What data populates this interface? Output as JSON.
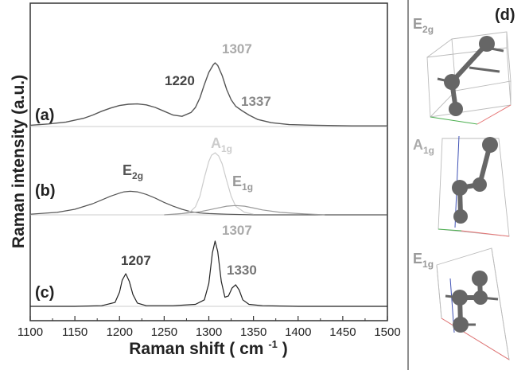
{
  "chart_data": {
    "type": "line",
    "xlabel": "Raman shift",
    "xlabel_unit_base": "cm",
    "xlabel_unit_exp": "-1",
    "ylabel": "Raman intensity (a.u.)",
    "xlim": [
      1100,
      1500
    ],
    "xticks": [
      "1100",
      "1150",
      "1200",
      "1250",
      "1300",
      "1350",
      "1400",
      "1450",
      "1500"
    ],
    "grid": false,
    "panels": [
      {
        "label": "(a)",
        "series": [
          {
            "style": "measured",
            "color": "#555555",
            "x": [
              1100,
              1120,
              1140,
              1160,
              1170,
              1180,
              1190,
              1200,
              1210,
              1220,
              1230,
              1240,
              1250,
              1260,
              1270,
              1280,
              1285,
              1290,
              1295,
              1300,
              1305,
              1307,
              1310,
              1315,
              1320,
              1325,
              1330,
              1337,
              1345,
              1355,
              1370,
              1390,
              1420,
              1460,
              1500
            ],
            "y": [
              0.02,
              0.04,
              0.07,
              0.13,
              0.18,
              0.24,
              0.29,
              0.33,
              0.35,
              0.355,
              0.34,
              0.3,
              0.24,
              0.18,
              0.16,
              0.22,
              0.3,
              0.45,
              0.66,
              0.85,
              0.97,
              1.0,
              0.96,
              0.8,
              0.58,
              0.42,
              0.32,
              0.25,
              0.18,
              0.11,
              0.06,
              0.03,
              0.02,
              0.01,
              0.01
            ]
          }
        ],
        "annotations": [
          {
            "text": "1220",
            "x": 1220,
            "color": "#444444"
          },
          {
            "text": "1307",
            "x": 1307,
            "color": "#aaaaaa"
          },
          {
            "text": "1337",
            "x": 1337,
            "color": "#888888"
          }
        ]
      },
      {
        "label": "(b)",
        "series": [
          {
            "name_base": "E",
            "name_sub": "2g",
            "color": "#555555",
            "x": [
              1100,
              1130,
              1150,
              1170,
              1180,
              1190,
              1200,
              1205,
              1212,
              1220,
              1230,
              1240,
              1250,
              1260,
              1270,
              1280,
              1290,
              1300,
              1320,
              1350,
              1400,
              1500
            ],
            "y": [
              0.01,
              0.04,
              0.09,
              0.18,
              0.24,
              0.3,
              0.35,
              0.37,
              0.38,
              0.37,
              0.33,
              0.27,
              0.2,
              0.14,
              0.09,
              0.05,
              0.03,
              0.02,
              0.01,
              0.0,
              0.0,
              0.0
            ]
          },
          {
            "name_base": "A",
            "name_sub": "1g",
            "color": "#cccccc",
            "x": [
              1270,
              1280,
              1285,
              1290,
              1295,
              1300,
              1303,
              1307,
              1311,
              1315,
              1320,
              1325,
              1330,
              1340,
              1350
            ],
            "y": [
              0.02,
              0.06,
              0.13,
              0.3,
              0.6,
              0.86,
              0.96,
              1.0,
              0.95,
              0.82,
              0.55,
              0.3,
              0.14,
              0.04,
              0.01
            ]
          },
          {
            "name_base": "E",
            "name_sub": "1g",
            "color": "#999999",
            "x": [
              1250,
              1270,
              1290,
              1300,
              1310,
              1320,
              1330,
              1340,
              1350,
              1360,
              1380,
              1400,
              1430
            ],
            "y": [
              0.0,
              0.02,
              0.05,
              0.08,
              0.11,
              0.14,
              0.15,
              0.14,
              0.11,
              0.08,
              0.04,
              0.02,
              0.0
            ]
          }
        ]
      },
      {
        "label": "(c)",
        "series": [
          {
            "style": "calculated",
            "color": "#222222",
            "x": [
              1100,
              1150,
              1180,
              1195,
              1200,
              1203,
              1207,
              1211,
              1215,
              1220,
              1230,
              1260,
              1285,
              1295,
              1300,
              1304,
              1307,
              1310,
              1314,
              1318,
              1322,
              1326,
              1330,
              1334,
              1338,
              1345,
              1360,
              1400,
              1500
            ],
            "y": [
              0.0,
              0.0,
              0.01,
              0.06,
              0.22,
              0.4,
              0.5,
              0.38,
              0.18,
              0.05,
              0.01,
              0.01,
              0.03,
              0.1,
              0.35,
              0.82,
              1.0,
              0.84,
              0.38,
              0.14,
              0.16,
              0.28,
              0.33,
              0.25,
              0.1,
              0.03,
              0.01,
              0.0,
              0.0
            ]
          }
        ],
        "annotations": [
          {
            "text": "1207",
            "x": 1207,
            "color": "#444444"
          },
          {
            "text": "1307",
            "x": 1307,
            "color": "#aaaaaa"
          },
          {
            "text": "1330",
            "x": 1330,
            "color": "#777777"
          }
        ]
      }
    ],
    "insets": [
      {
        "label": "(d)"
      },
      {
        "mode_base": "E",
        "mode_sub": "2g"
      },
      {
        "mode_base": "A",
        "mode_sub": "1g"
      },
      {
        "mode_base": "E",
        "mode_sub": "1g"
      }
    ]
  }
}
